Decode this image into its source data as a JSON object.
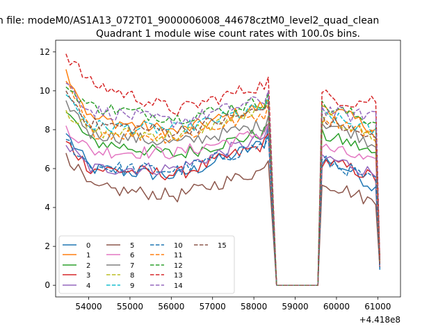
{
  "suptitle": "n file: modeM0/AS1A13_072T01_9000006008_44678cztM0_level2_quad_clean",
  "chart_data": {
    "type": "line",
    "title": "Quadrant 1 module wise count rates with 100.0s bins.",
    "xlabel": "",
    "ylabel": "",
    "x_offset_label": "+4.418e8",
    "xlim": [
      53200,
      61550
    ],
    "ylim": [
      -0.6,
      12.6
    ],
    "x_ticks": [
      54000,
      55000,
      56000,
      57000,
      58000,
      59000,
      60000,
      61000
    ],
    "y_ticks": [
      0,
      2,
      4,
      6,
      8,
      10,
      12
    ],
    "grid": false,
    "legend": {
      "placement": "lower-left",
      "ncol": 4
    },
    "segments": [
      {
        "label": "seg1",
        "x_start": 53450,
        "x_end": 58350,
        "step": 100
      },
      {
        "label": "gap",
        "points_x": [
          58550,
          58650,
          58750,
          58850,
          58950,
          59050,
          59150,
          59250,
          59350,
          59450,
          59550
        ]
      },
      {
        "label": "seg2",
        "x_start": 59650,
        "x_end": 61050,
        "step": 100
      }
    ],
    "series": [
      {
        "name": "0",
        "color": "#1f77b4",
        "dash": "solid",
        "start": 7.8,
        "mid1": 6.0,
        "mid2": 5.6,
        "pre_drop": 7.4,
        "peak": 8.1,
        "seg2_start": 6.5,
        "seg2_mid": 5.9,
        "seg2_end": 4.8,
        "end_value": 0.8,
        "noise": 0.35
      },
      {
        "name": "1",
        "color": "#ff7f0e",
        "dash": "solid",
        "start": 11.1,
        "mid1": 8.6,
        "mid2": 7.9,
        "pre_drop": 9.3,
        "peak": 9.6,
        "seg2_start": 9.3,
        "seg2_mid": 8.6,
        "seg2_end": 7.9,
        "end_value": 1.2,
        "noise": 0.35
      },
      {
        "name": "2",
        "color": "#2ca02c",
        "dash": "solid",
        "start": 8.9,
        "mid1": 7.4,
        "mid2": 6.7,
        "pre_drop": 7.9,
        "peak": 8.3,
        "seg2_start": 7.7,
        "seg2_mid": 7.3,
        "seg2_end": 6.6,
        "end_value": 1.0,
        "noise": 0.35
      },
      {
        "name": "3",
        "color": "#d62728",
        "dash": "solid",
        "start": 7.4,
        "mid1": 6.0,
        "mid2": 5.7,
        "pre_drop": 7.3,
        "peak": 7.8,
        "seg2_start": 6.4,
        "seg2_mid": 6.0,
        "seg2_end": 5.4,
        "end_value": 0.9,
        "noise": 0.35
      },
      {
        "name": "4",
        "color": "#9467bd",
        "dash": "solid",
        "start": 7.2,
        "mid1": 6.0,
        "mid2": 6.0,
        "pre_drop": 7.7,
        "peak": 8.2,
        "seg2_start": 6.6,
        "seg2_mid": 6.2,
        "seg2_end": 5.6,
        "end_value": 1.0,
        "noise": 0.35
      },
      {
        "name": "5",
        "color": "#8c564b",
        "dash": "solid",
        "start": 6.8,
        "mid1": 5.0,
        "mid2": 4.6,
        "pre_drop": 6.0,
        "peak": 6.4,
        "seg2_start": 5.3,
        "seg2_mid": 4.8,
        "seg2_end": 4.1,
        "end_value": 0.9,
        "noise": 0.35
      },
      {
        "name": "6",
        "color": "#e377c2",
        "dash": "solid",
        "start": 8.2,
        "mid1": 6.9,
        "mid2": 6.8,
        "pre_drop": 7.9,
        "peak": 8.3,
        "seg2_start": 7.1,
        "seg2_mid": 6.7,
        "seg2_end": 6.1,
        "end_value": 1.0,
        "noise": 0.35
      },
      {
        "name": "7",
        "color": "#7f7f7f",
        "dash": "solid",
        "start": 9.5,
        "mid1": 7.8,
        "mid2": 7.3,
        "pre_drop": 8.3,
        "peak": 8.7,
        "seg2_start": 8.4,
        "seg2_mid": 7.9,
        "seg2_end": 7.1,
        "end_value": 1.1,
        "noise": 0.35
      },
      {
        "name": "8",
        "color": "#bcbd22",
        "dash": "dashed",
        "start": 9.0,
        "mid1": 7.9,
        "mid2": 7.7,
        "pre_drop": 9.1,
        "peak": 9.4,
        "seg2_start": 8.6,
        "seg2_mid": 8.2,
        "seg2_end": 7.5,
        "end_value": 1.1,
        "noise": 0.35
      },
      {
        "name": "9",
        "color": "#17becf",
        "dash": "dashed",
        "start": 9.8,
        "mid1": 8.2,
        "mid2": 8.0,
        "pre_drop": 9.2,
        "peak": 9.6,
        "seg2_start": 8.8,
        "seg2_mid": 8.3,
        "seg2_end": 7.8,
        "end_value": 1.2,
        "noise": 0.35
      },
      {
        "name": "10",
        "color": "#1f77b4",
        "dash": "dashed",
        "start": 7.5,
        "mid1": 6.1,
        "mid2": 5.9,
        "pre_drop": 7.3,
        "peak": 7.7,
        "seg2_start": 6.4,
        "seg2_mid": 5.9,
        "seg2_end": 5.2,
        "end_value": 0.9,
        "noise": 0.35
      },
      {
        "name": "11",
        "color": "#ff7f0e",
        "dash": "dashed",
        "start": 10.5,
        "mid1": 7.9,
        "mid2": 7.6,
        "pre_drop": 8.9,
        "peak": 9.3,
        "seg2_start": 8.7,
        "seg2_mid": 8.2,
        "seg2_end": 7.5,
        "end_value": 1.1,
        "noise": 0.35
      },
      {
        "name": "12",
        "color": "#2ca02c",
        "dash": "dashed",
        "start": 10.2,
        "mid1": 9.2,
        "mid2": 8.6,
        "pre_drop": 9.5,
        "peak": 9.9,
        "seg2_start": 9.2,
        "seg2_mid": 8.8,
        "seg2_end": 8.3,
        "end_value": 1.2,
        "noise": 0.35
      },
      {
        "name": "13",
        "color": "#d62728",
        "dash": "dashed",
        "start": 11.9,
        "mid1": 10.4,
        "mid2": 9.0,
        "pre_drop": 10.4,
        "peak": 10.7,
        "seg2_start": 9.8,
        "seg2_mid": 9.4,
        "seg2_end": 9.6,
        "end_value": 1.3,
        "noise": 0.35
      },
      {
        "name": "14",
        "color": "#9467bd",
        "dash": "dashed",
        "start": 10.4,
        "mid1": 9.0,
        "mid2": 8.4,
        "pre_drop": 9.6,
        "peak": 10.0,
        "seg2_start": 9.1,
        "seg2_mid": 8.7,
        "seg2_end": 8.9,
        "end_value": 1.2,
        "noise": 0.35
      },
      {
        "name": "15",
        "color": "#8c564b",
        "dash": "dashed",
        "start": 10.0,
        "mid1": 8.3,
        "mid2": 7.9,
        "pre_drop": 9.1,
        "peak": 9.4,
        "seg2_start": 8.5,
        "seg2_mid": 8.0,
        "seg2_end": 7.4,
        "end_value": 1.1,
        "noise": 0.35
      }
    ]
  }
}
